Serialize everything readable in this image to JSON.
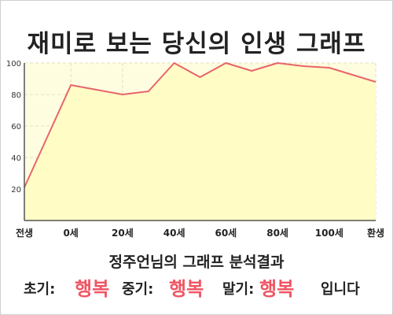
{
  "title": "재미로 보는 당신의 인생 그래프",
  "chart_data": {
    "type": "area",
    "x_categories": [
      "전생",
      "0세",
      "20세",
      "40세",
      "60세",
      "80세",
      "100세",
      "환생"
    ],
    "x_tick_positions": [
      -18,
      0,
      20,
      40,
      60,
      80,
      100,
      118
    ],
    "ylim": [
      0,
      100
    ],
    "y_ticks": [
      20,
      40,
      60,
      80,
      100
    ],
    "grid": true,
    "colors": {
      "line": "#e8646a",
      "fill": "#fffcc5",
      "plot_bg": "#fffde0"
    },
    "series": [
      {
        "x": [
          -18,
          0,
          10,
          20,
          30,
          40,
          50,
          60,
          70,
          80,
          90,
          100,
          110,
          118
        ],
        "y": [
          21,
          86,
          83,
          80,
          82,
          100,
          91,
          100,
          95,
          100,
          98,
          97,
          92,
          88
        ]
      }
    ]
  },
  "analysis": {
    "heading": "정주언님의 그래프 분석결과",
    "early_label": "초기:",
    "early_value": "행복",
    "mid_label": "중기:",
    "mid_value": "행복",
    "late_label": "말기:",
    "late_value": "행복",
    "ending": "입니다"
  }
}
